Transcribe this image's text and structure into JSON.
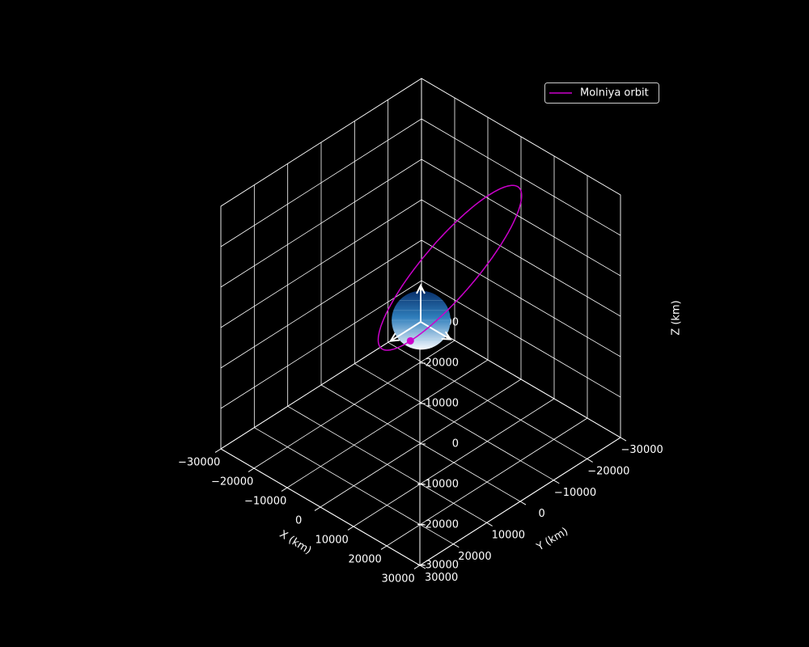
{
  "chart_data": {
    "type": "line3d",
    "projection": "3d",
    "background": "#000000",
    "grid": true,
    "legend_position": "top-right",
    "title": "",
    "xlabel": "X (km)",
    "ylabel": "Y (km)",
    "zlabel": "Z (km)",
    "xlim": [
      -30000,
      30000
    ],
    "ylim": [
      -30000,
      30000
    ],
    "zlim": [
      -30000,
      30000
    ],
    "xticks": [
      -30000,
      -20000,
      -10000,
      0,
      10000,
      20000,
      30000
    ],
    "yticks": [
      -30000,
      -20000,
      -10000,
      0,
      10000,
      20000,
      30000
    ],
    "zticks": [
      -30000,
      -20000,
      -10000,
      0,
      10000,
      20000,
      30000
    ],
    "xtick_labels": [
      "−30000",
      "−20000",
      "−10000",
      "0",
      "10000",
      "20000",
      "30000"
    ],
    "ytick_labels": [
      "−30000",
      "−20000",
      "−10000",
      "0",
      "10000",
      "20000",
      "30000"
    ],
    "ztick_labels": [
      "−30000",
      "−20000",
      "−10000",
      "0",
      "10000",
      "20000",
      "30000"
    ],
    "earth": {
      "center": [
        0,
        0,
        0
      ],
      "radius_km": 6378,
      "color_top": "#08306b",
      "color_bottom": "#f7fbff"
    },
    "axes_arrows": [
      {
        "axis": "x",
        "vector": [
          9000,
          0,
          0
        ]
      },
      {
        "axis": "y",
        "vector": [
          0,
          9000,
          0
        ]
      },
      {
        "axis": "z",
        "vector": [
          0,
          0,
          9000
        ]
      }
    ],
    "series": [
      {
        "name": "Molniya orbit",
        "color": "#cc00cc",
        "semi_major_axis_km": 26600,
        "eccentricity": 0.74,
        "inclination_deg": 63.4,
        "raan_deg": 0,
        "arg_perigee_deg": 270,
        "satellite_true_anomaly_deg": 0
      }
    ],
    "satellite_marker": {
      "color": "#cc00cc"
    }
  }
}
